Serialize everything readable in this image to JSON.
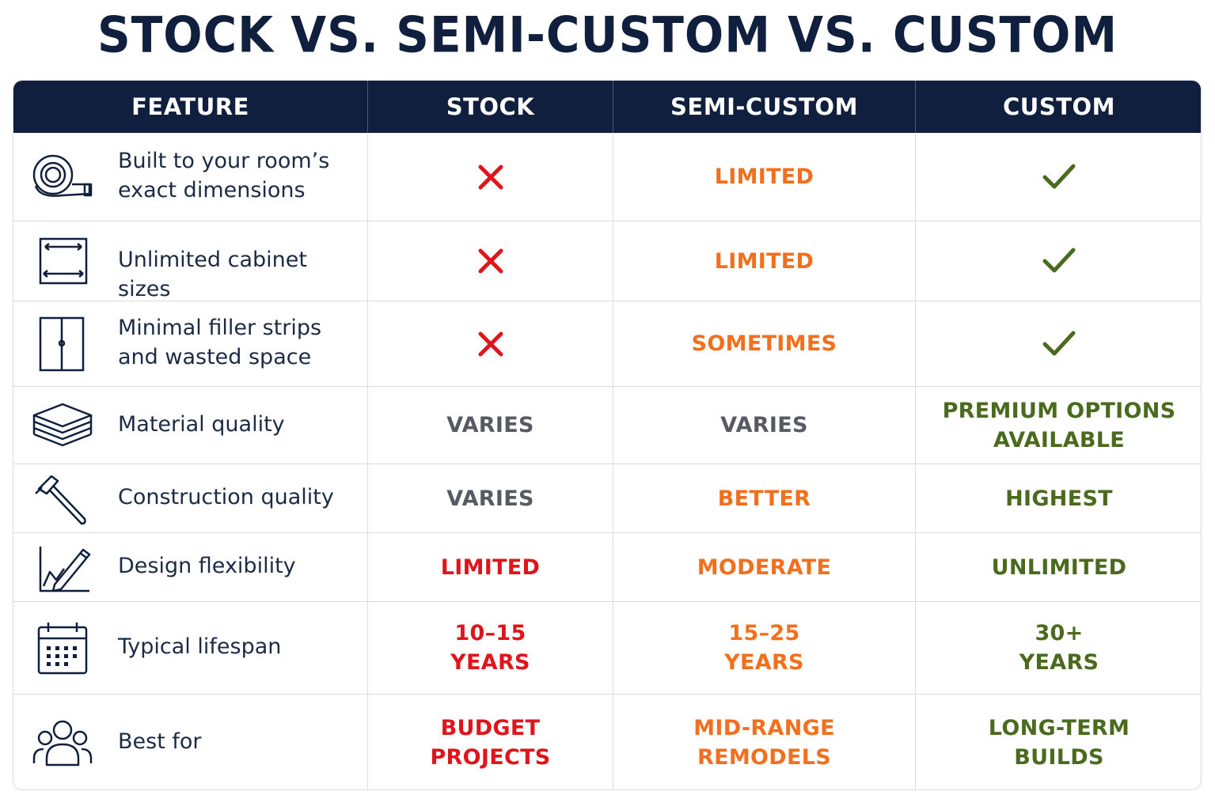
{
  "title": "STOCK VS. SEMI-CUSTOM VS. CUSTOM",
  "colors": {
    "navy": "#0f1f3d",
    "red": "#e0141b",
    "orange": "#f2701d",
    "green": "#4a6a1e",
    "gray": "#555a63"
  },
  "headers": [
    "FEATURE",
    "STOCK",
    "SEMI-CUSTOM",
    "CUSTOM"
  ],
  "rows": [
    {
      "icon": "tape-measure-icon",
      "feature": [
        "Built to your room’s",
        "exact dimensions"
      ],
      "stock": {
        "mark": "x-mark-icon"
      },
      "semi": {
        "lines": [
          "LIMITED"
        ],
        "color": "orange"
      },
      "custom": {
        "mark": "check-mark-icon"
      }
    },
    {
      "icon": "cabinet-dimensions-icon",
      "feature": [
        "Unlimited cabinet sizes"
      ],
      "stock": {
        "mark": "x-mark-icon"
      },
      "semi": {
        "lines": [
          "LIMITED"
        ],
        "color": "orange"
      },
      "custom": {
        "mark": "check-mark-icon"
      }
    },
    {
      "icon": "double-door-cabinet-icon",
      "feature": [
        "Minimal filler strips",
        "and wasted space"
      ],
      "stock": {
        "mark": "x-mark-icon"
      },
      "semi": {
        "lines": [
          "SOMETIMES"
        ],
        "color": "orange"
      },
      "custom": {
        "mark": "check-mark-icon"
      }
    },
    {
      "icon": "material-layers-icon",
      "feature": [
        "Material quality"
      ],
      "stock": {
        "lines": [
          "VARIES"
        ],
        "color": "gray"
      },
      "semi": {
        "lines": [
          "VARIES"
        ],
        "color": "gray"
      },
      "custom": {
        "lines": [
          "PREMIUM OPTIONS",
          "AVAILABLE"
        ],
        "color": "green"
      }
    },
    {
      "icon": "hammer-icon",
      "feature": [
        "Construction quality"
      ],
      "stock": {
        "lines": [
          "VARIES"
        ],
        "color": "gray"
      },
      "semi": {
        "lines": [
          "BETTER"
        ],
        "color": "orange"
      },
      "custom": {
        "lines": [
          "HIGHEST"
        ],
        "color": "green"
      }
    },
    {
      "icon": "design-pencil-icon",
      "feature": [
        "Design flexibility"
      ],
      "stock": {
        "lines": [
          "LIMITED"
        ],
        "color": "red"
      },
      "semi": {
        "lines": [
          "MODERATE"
        ],
        "color": "orange"
      },
      "custom": {
        "lines": [
          "UNLIMITED"
        ],
        "color": "green"
      }
    },
    {
      "icon": "calendar-icon",
      "feature": [
        "Typical lifespan"
      ],
      "stock": {
        "lines": [
          "10–15",
          "YEARS"
        ],
        "color": "red"
      },
      "semi": {
        "lines": [
          "15–25",
          "YEARS"
        ],
        "color": "orange"
      },
      "custom": {
        "lines": [
          "30+",
          "YEARS"
        ],
        "color": "green"
      }
    },
    {
      "icon": "people-group-icon",
      "feature": [
        "Best for"
      ],
      "stock": {
        "lines": [
          "BUDGET",
          "PROJECTS"
        ],
        "color": "red"
      },
      "semi": {
        "lines": [
          "MID-RANGE",
          "REMODELS"
        ],
        "color": "orange"
      },
      "custom": {
        "lines": [
          "LONG-TERM",
          "BUILDS"
        ],
        "color": "green"
      }
    }
  ]
}
